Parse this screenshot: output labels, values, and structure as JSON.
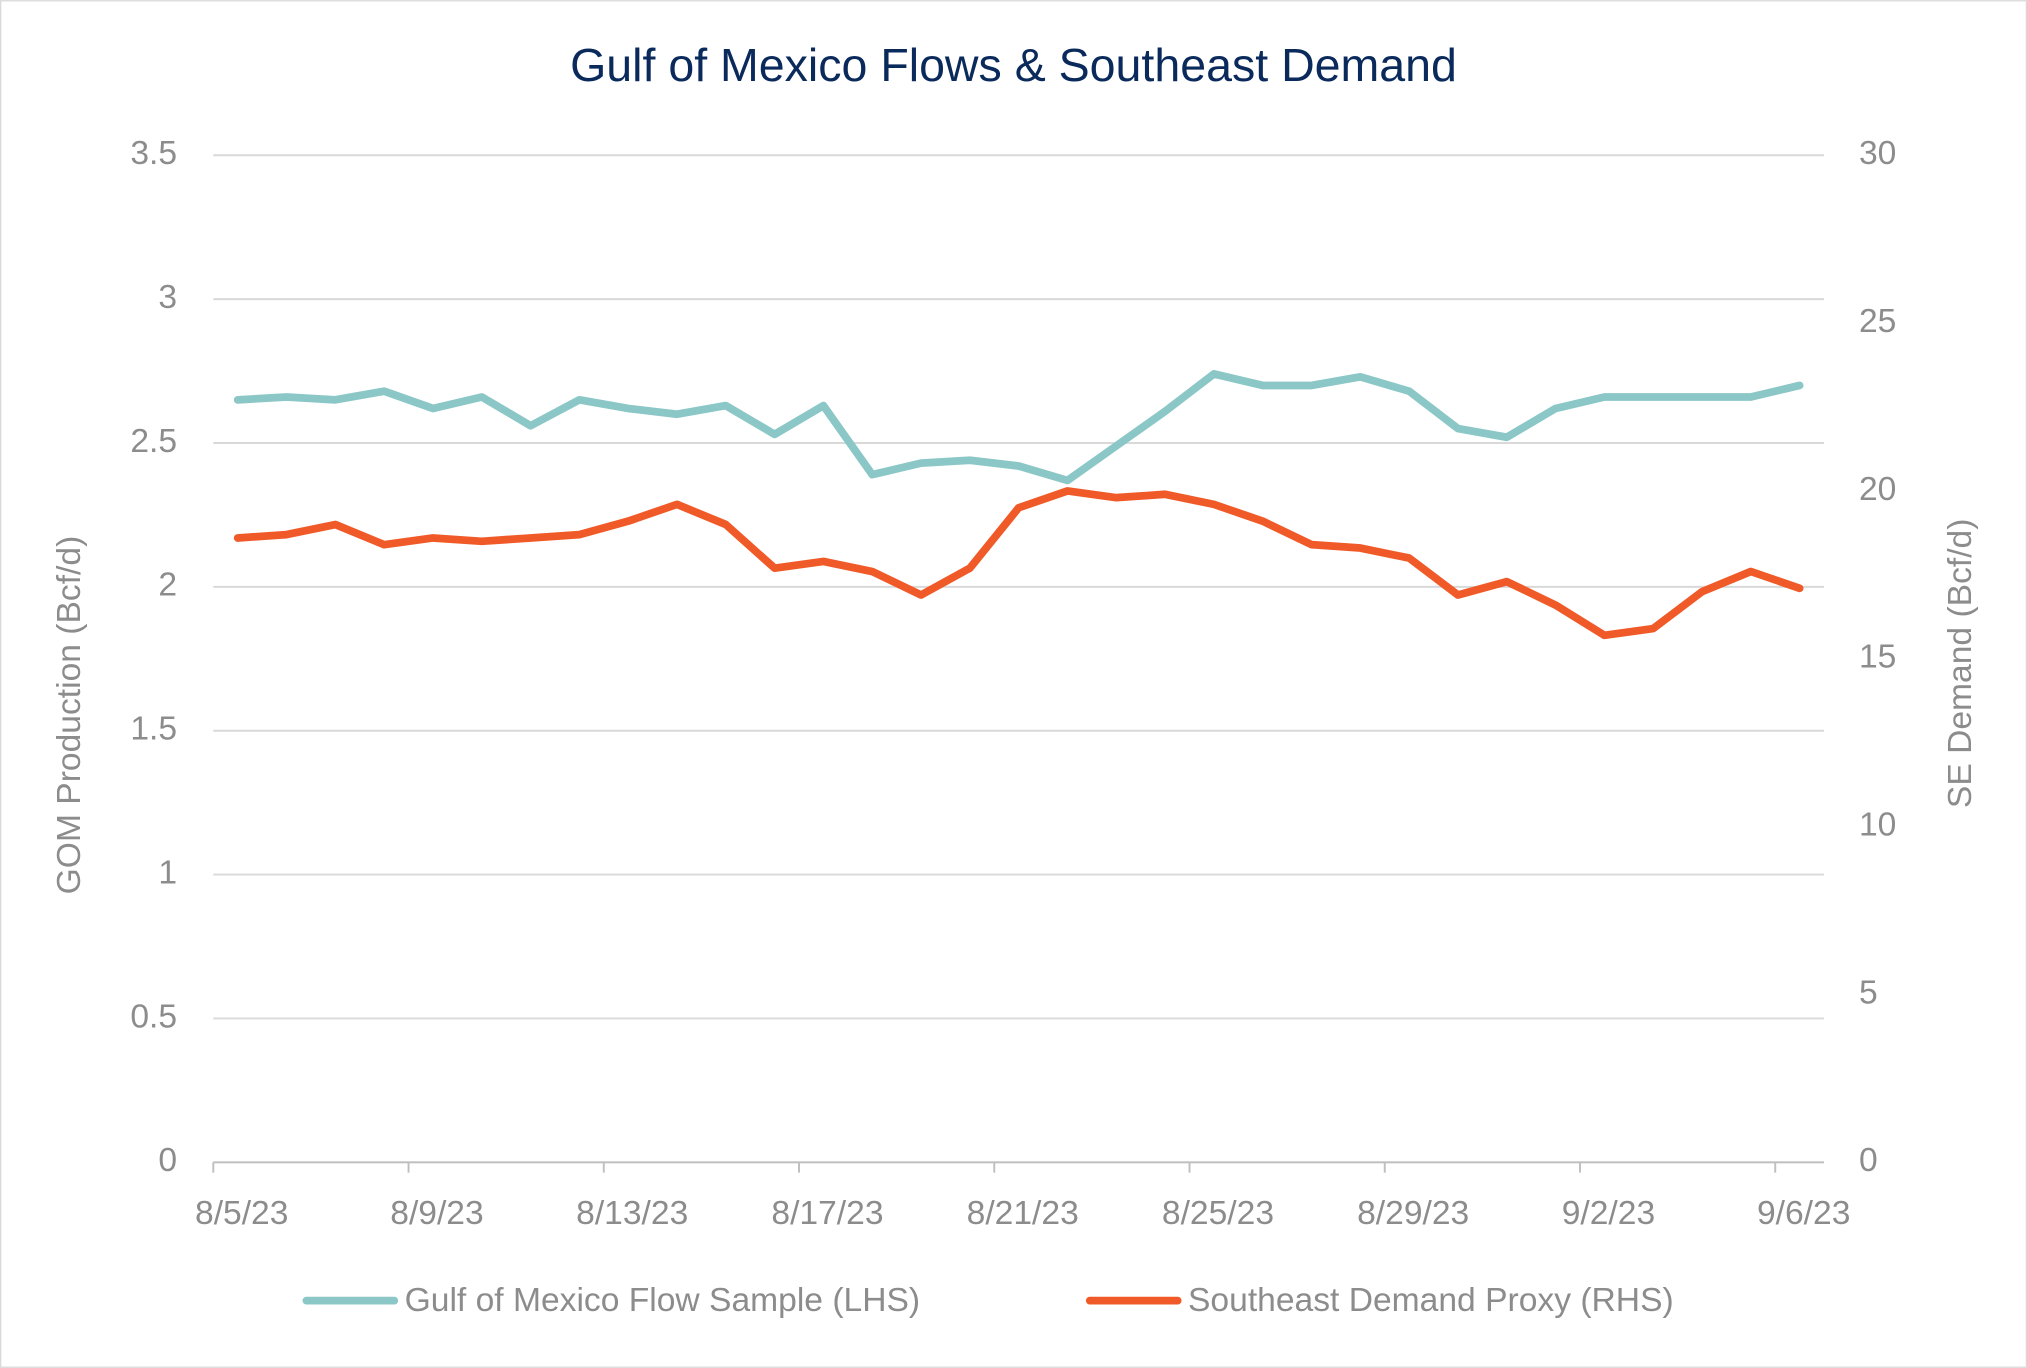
{
  "chart_data": {
    "type": "line",
    "title": "Gulf of Mexico Flows & Southeast Demand",
    "y_label": "GOM Production (Bcf/d)",
    "y2_label": "SE Demand (Bcf/d)",
    "categories": [
      "8/5/23",
      null,
      null,
      null,
      "8/9/23",
      null,
      null,
      null,
      "8/13/23",
      null,
      null,
      null,
      "8/17/23",
      null,
      null,
      null,
      "8/21/23",
      null,
      null,
      null,
      "8/25/23",
      null,
      null,
      null,
      "8/29/23",
      null,
      null,
      null,
      "9/2/23",
      null,
      null,
      null,
      "9/6/23"
    ],
    "ylim": [
      0,
      3.5
    ],
    "yticks": [
      0,
      0.5,
      1,
      1.5,
      2,
      2.5,
      3,
      3.5
    ],
    "y2lim": [
      0,
      30
    ],
    "y2ticks": [
      0,
      5,
      10,
      15,
      20,
      25,
      30
    ],
    "grid": true,
    "legend": "bottom",
    "series": [
      {
        "name": "Gulf of Mexico Flow Sample (LHS)",
        "color": "#8ac7c6",
        "values": [
          2.65,
          2.66,
          2.65,
          2.68,
          2.62,
          2.66,
          2.56,
          2.65,
          2.62,
          2.6,
          2.63,
          2.53,
          2.63,
          2.39,
          2.43,
          2.44,
          2.42,
          2.37,
          2.49,
          2.61,
          2.74,
          2.7,
          2.7,
          2.73,
          2.68,
          2.55,
          2.52,
          2.62,
          2.66,
          2.66,
          2.66,
          2.66,
          2.7
        ]
      },
      {
        "name": "Southeast Demand Proxy (RHS)",
        "color": "#f05a28",
        "axis": "y2",
        "values": [
          18.6,
          18.7,
          19.0,
          18.4,
          18.6,
          18.5,
          18.6,
          18.7,
          19.1,
          19.6,
          19.0,
          17.7,
          17.9,
          17.6,
          16.9,
          17.7,
          19.5,
          20.0,
          19.8,
          19.9,
          19.6,
          19.1,
          18.4,
          18.3,
          18.0,
          16.9,
          17.3,
          16.6,
          15.7,
          15.9,
          17.0,
          17.6,
          17.1
        ]
      }
    ]
  }
}
